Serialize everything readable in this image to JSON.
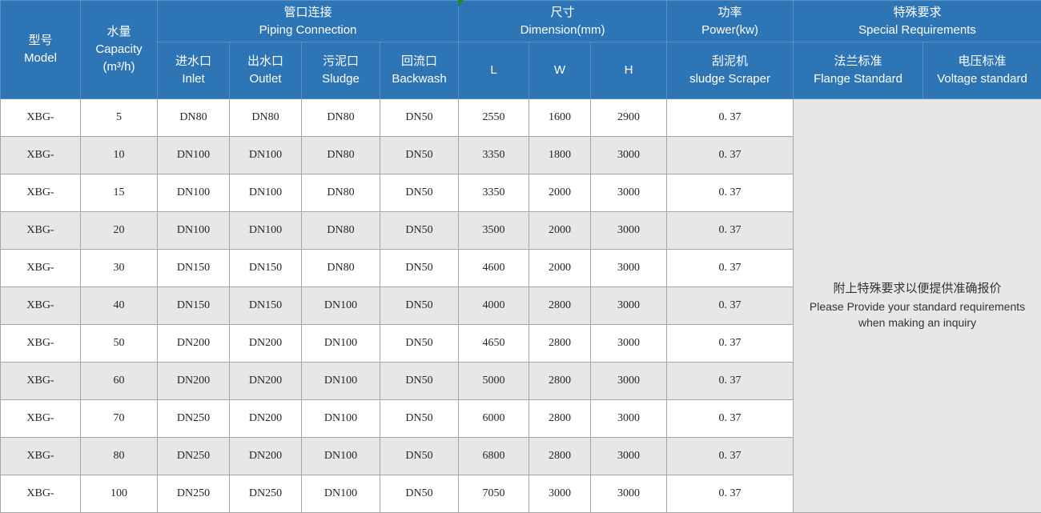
{
  "colors": {
    "header_bg": "#2E75B6",
    "header_text": "#FFFFFF",
    "row_stripe": "#E7E7E7",
    "grid_border": "#A6A6A6",
    "corner_marker_green": "#1E8A35"
  },
  "header": {
    "model": {
      "zh": "型号",
      "en": "Model"
    },
    "capacity": {
      "zh": "水量",
      "en": "Capacity",
      "unit": "(m³/h)"
    },
    "piping": {
      "zh": "管口连接",
      "en": "Piping Connection"
    },
    "dimension": {
      "zh": "尺寸",
      "en": "Dimension(mm)"
    },
    "power": {
      "zh": "功率",
      "en": "Power(kw)"
    },
    "special": {
      "zh": "特殊要求",
      "en": "Special Requirements"
    },
    "inlet": {
      "zh": "进水口",
      "en": "Inlet"
    },
    "outlet": {
      "zh": "出水口",
      "en": "Outlet"
    },
    "sludge": {
      "zh": "污泥口",
      "en": "Sludge"
    },
    "backwash": {
      "zh": "回流口",
      "en": "Backwash"
    },
    "length": "L",
    "width": "W",
    "height": "H",
    "scraper": {
      "zh": "刮泥机",
      "en": "sludge Scraper"
    },
    "flange": {
      "zh": "法兰标准",
      "en": "Flange Standard"
    },
    "voltage": {
      "zh": "电压标准",
      "en": "Voltage standard"
    }
  },
  "note": {
    "zh": "附上特殊要求以便提供准确报价",
    "en1": "Please Provide your standard requirements",
    "en2": "when making an inquiry"
  },
  "table": {
    "columns": [
      "model",
      "capacity",
      "inlet",
      "outlet",
      "sludge",
      "backwash",
      "length",
      "width",
      "height",
      "power"
    ],
    "rows": [
      [
        "XBG-",
        "5",
        "DN80",
        "DN80",
        "DN80",
        "DN50",
        "2550",
        "1600",
        "2900",
        "0. 37"
      ],
      [
        "XBG-",
        "10",
        "DN100",
        "DN100",
        "DN80",
        "DN50",
        "3350",
        "1800",
        "3000",
        "0. 37"
      ],
      [
        "XBG-",
        "15",
        "DN100",
        "DN100",
        "DN80",
        "DN50",
        "3350",
        "2000",
        "3000",
        "0. 37"
      ],
      [
        "XBG-",
        "20",
        "DN100",
        "DN100",
        "DN80",
        "DN50",
        "3500",
        "2000",
        "3000",
        "0. 37"
      ],
      [
        "XBG-",
        "30",
        "DN150",
        "DN150",
        "DN80",
        "DN50",
        "4600",
        "2000",
        "3000",
        "0. 37"
      ],
      [
        "XBG-",
        "40",
        "DN150",
        "DN150",
        "DN100",
        "DN50",
        "4000",
        "2800",
        "3000",
        "0. 37"
      ],
      [
        "XBG-",
        "50",
        "DN200",
        "DN200",
        "DN100",
        "DN50",
        "4650",
        "2800",
        "3000",
        "0. 37"
      ],
      [
        "XBG-",
        "60",
        "DN200",
        "DN200",
        "DN100",
        "DN50",
        "5000",
        "2800",
        "3000",
        "0. 37"
      ],
      [
        "XBG-",
        "70",
        "DN250",
        "DN200",
        "DN100",
        "DN50",
        "6000",
        "2800",
        "3000",
        "0. 37"
      ],
      [
        "XBG-",
        "80",
        "DN250",
        "DN200",
        "DN100",
        "DN50",
        "6800",
        "2800",
        "3000",
        "0. 37"
      ],
      [
        "XBG-",
        "100",
        "DN250",
        "DN250",
        "DN100",
        "DN50",
        "7050",
        "3000",
        "3000",
        "0. 37"
      ]
    ]
  }
}
